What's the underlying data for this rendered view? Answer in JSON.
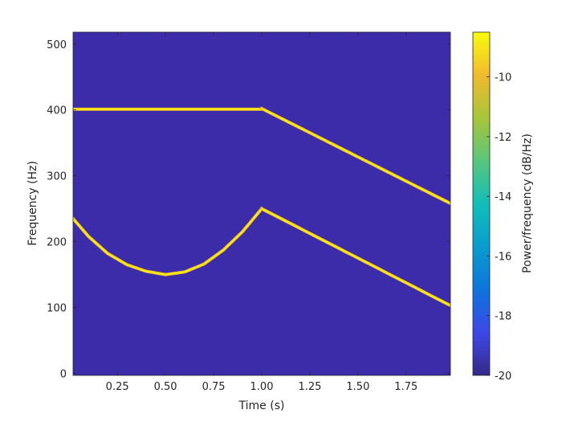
{
  "chart_data": {
    "type": "heatmap",
    "subtype": "spectrogram",
    "xlabel": "Time (s)",
    "ylabel": "Frequency (Hz)",
    "colorbar_label": "Power/frequency (dB/Hz)",
    "xlim": [
      0.02,
      1.98
    ],
    "ylim": [
      -3,
      518
    ],
    "xticks": [
      0.25,
      0.5,
      0.75,
      1.0,
      1.25,
      1.5,
      1.75
    ],
    "xtick_labels": [
      "0.25",
      "0.50",
      "0.75",
      "1.00",
      "1.25",
      "1.50",
      "1.75"
    ],
    "yticks": [
      0,
      100,
      200,
      300,
      400,
      500
    ],
    "ytick_labels": [
      "0",
      "100",
      "200",
      "300",
      "400",
      "500"
    ],
    "clim": [
      -20,
      -8.5
    ],
    "cticks": [
      -20,
      -18,
      -16,
      -14,
      -12,
      -10
    ],
    "ctick_labels": [
      "-20",
      "-18",
      "-16",
      "-14",
      "-12",
      "-10"
    ],
    "colormap": "parula",
    "background_level": -20,
    "background_color": "#3D2CA9",
    "series": [
      {
        "component": "tone",
        "x": [
          0.02,
          1.0
        ],
        "y": [
          401,
          401
        ]
      },
      {
        "component": "descending-chirp-upper",
        "x": [
          1.0,
          1.98
        ],
        "y": [
          402,
          258
        ]
      },
      {
        "component": "quadratic-chirp",
        "x": [
          0.02,
          0.1,
          0.2,
          0.3,
          0.4,
          0.5,
          0.6,
          0.7,
          0.8,
          0.9,
          1.0
        ],
        "y": [
          235,
          208,
          182,
          165,
          155,
          150,
          154,
          166,
          187,
          215,
          250
        ]
      },
      {
        "component": "descending-chirp-lower",
        "x": [
          1.0,
          1.98
        ],
        "y": [
          250,
          103
        ]
      }
    ]
  }
}
